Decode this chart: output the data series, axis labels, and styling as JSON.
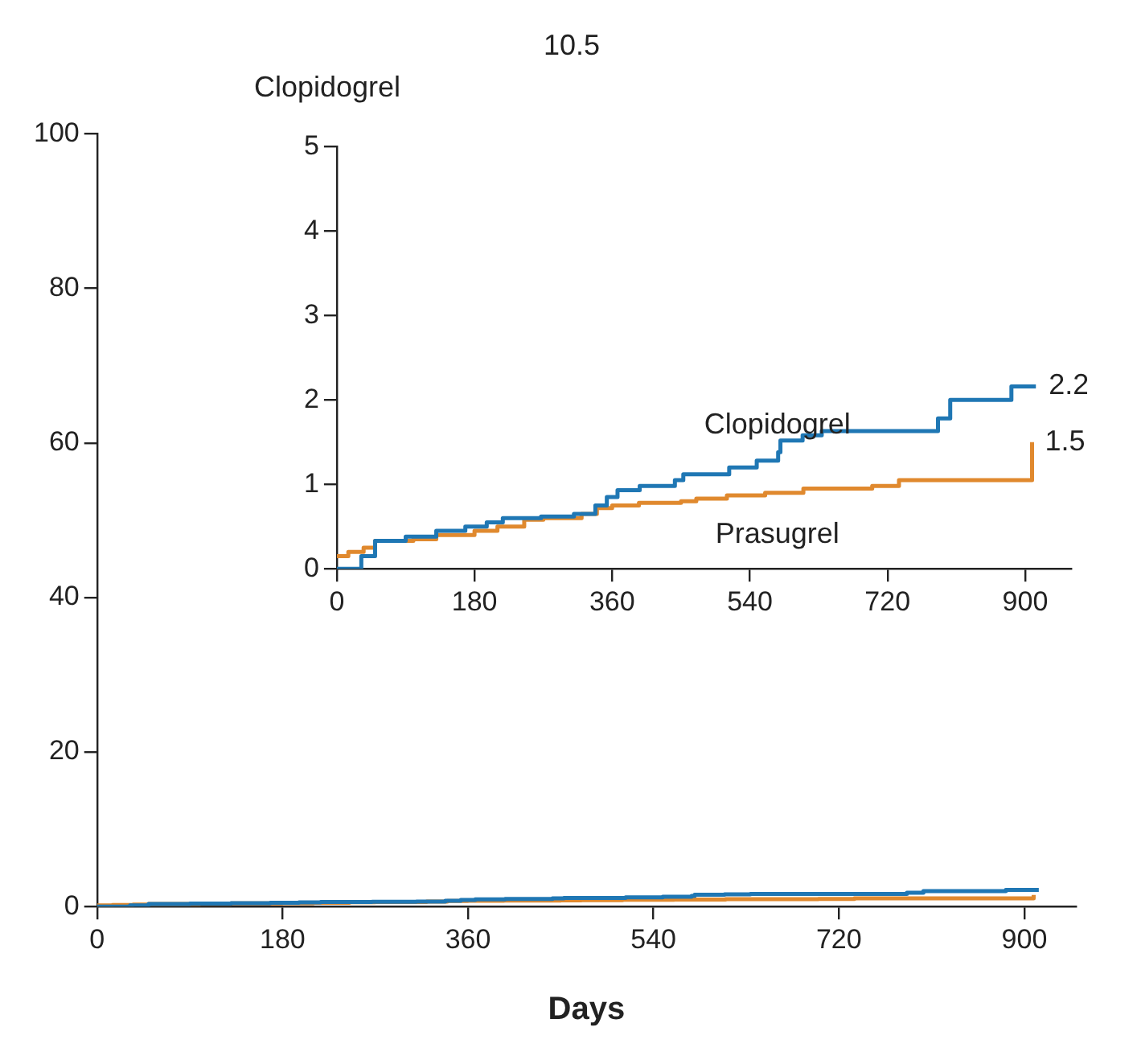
{
  "chart_data": [
    {
      "type": "step",
      "xlabel": "Days",
      "annotations": [
        "Clopidogrel",
        "10.5"
      ],
      "xlim": [
        0,
        950
      ],
      "xticks": [
        0,
        180,
        360,
        540,
        720,
        900
      ],
      "ylim": [
        0,
        100
      ],
      "yticks": [
        0,
        20,
        40,
        60,
        80,
        100
      ],
      "grid": false,
      "legend": false,
      "marker": "none",
      "series": [
        {
          "color": "#1f77b4",
          "x": [
            0,
            32,
            50,
            90,
            130,
            168,
            196,
            217,
            267,
            310,
            338,
            353,
            367,
            396,
            442,
            453,
            513,
            549,
            577,
            580,
            609,
            634,
            784,
            786,
            802,
            882,
            914
          ],
          "values": [
            0,
            0.15,
            0.33,
            0.38,
            0.45,
            0.5,
            0.55,
            0.6,
            0.62,
            0.65,
            0.75,
            0.85,
            0.93,
            0.98,
            1.05,
            1.12,
            1.2,
            1.28,
            1.38,
            1.52,
            1.58,
            1.63,
            1.63,
            1.78,
            2.0,
            2.16,
            2.16
          ]
        },
        {
          "color": "#e0892e",
          "x": [
            0,
            15,
            35,
            50,
            100,
            130,
            180,
            210,
            245,
            270,
            320,
            340,
            360,
            395,
            450,
            470,
            510,
            560,
            610,
            700,
            735,
            909,
            909
          ],
          "values": [
            0.15,
            0.2,
            0.25,
            0.33,
            0.35,
            0.4,
            0.45,
            0.5,
            0.58,
            0.6,
            0.65,
            0.72,
            0.75,
            0.78,
            0.8,
            0.83,
            0.87,
            0.9,
            0.95,
            0.98,
            1.05,
            1.05,
            1.5
          ]
        }
      ]
    },
    {
      "type": "step",
      "annotations": [
        {
          "text": "2.2",
          "x": 914,
          "y": 2.16
        },
        {
          "text": "1.5",
          "x": 909,
          "y": 1.5
        }
      ],
      "xlim": [
        0,
        960
      ],
      "xticks": [
        0,
        180,
        360,
        540,
        720,
        900
      ],
      "ylim": [
        0,
        5
      ],
      "yticks": [
        0,
        1,
        2,
        3,
        4,
        5
      ],
      "grid": false,
      "legend": false,
      "marker": "none",
      "series": [
        {
          "name": "Clopidogrel",
          "color": "#1f77b4",
          "x": [
            0,
            32,
            50,
            90,
            130,
            168,
            196,
            217,
            267,
            310,
            338,
            353,
            367,
            396,
            442,
            453,
            513,
            549,
            577,
            580,
            609,
            634,
            784,
            786,
            802,
            882,
            914
          ],
          "values": [
            0,
            0.15,
            0.33,
            0.38,
            0.45,
            0.5,
            0.55,
            0.6,
            0.62,
            0.65,
            0.75,
            0.85,
            0.93,
            0.98,
            1.05,
            1.12,
            1.2,
            1.28,
            1.38,
            1.52,
            1.58,
            1.63,
            1.63,
            1.78,
            2.0,
            2.16,
            2.16
          ]
        },
        {
          "name": "Prasugrel",
          "color": "#e0892e",
          "x": [
            0,
            15,
            35,
            50,
            100,
            130,
            180,
            210,
            245,
            270,
            320,
            340,
            360,
            395,
            450,
            470,
            510,
            560,
            610,
            700,
            735,
            909,
            909
          ],
          "values": [
            0.15,
            0.2,
            0.25,
            0.33,
            0.35,
            0.4,
            0.45,
            0.5,
            0.58,
            0.6,
            0.65,
            0.72,
            0.75,
            0.78,
            0.8,
            0.83,
            0.87,
            0.9,
            0.95,
            0.98,
            1.05,
            1.05,
            1.5
          ]
        }
      ]
    }
  ]
}
